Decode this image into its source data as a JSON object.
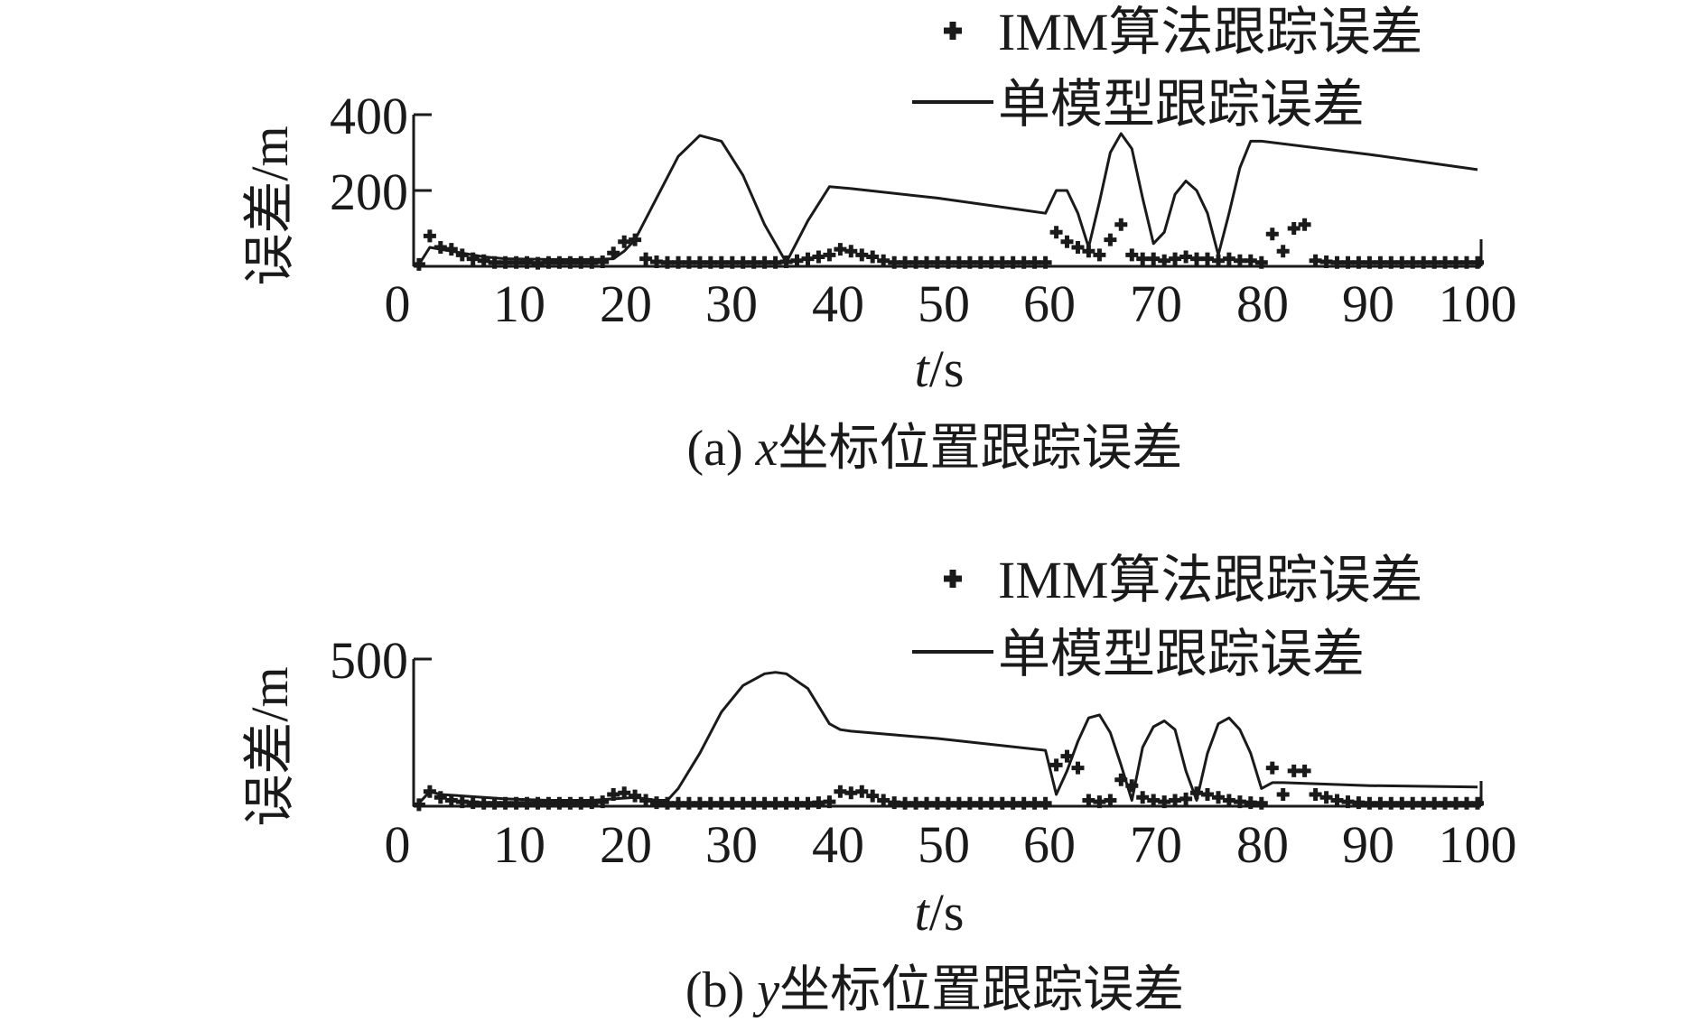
{
  "figure": {
    "panels": [
      {
        "legend": {
          "markers_label": "IMM算法跟踪误差",
          "line_label": "单模型跟踪误差"
        },
        "ylabel": "误差/m",
        "xlabel_var": "t",
        "xlabel_unit": "/s",
        "caption_prefix": "(a) ",
        "caption_var": "x",
        "caption_rest": "坐标位置跟踪误差",
        "xticks": [
          "0",
          "10",
          "20",
          "30",
          "40",
          "50",
          "60",
          "70",
          "80",
          "90",
          "100"
        ],
        "yticks": [
          "200",
          "400"
        ]
      },
      {
        "legend": {
          "markers_label": "IMM算法跟踪误差",
          "line_label": "单模型跟踪误差"
        },
        "ylabel": "误差/m",
        "xlabel_var": "t",
        "xlabel_unit": "/s",
        "caption_prefix": "(b) ",
        "caption_var": "y",
        "caption_rest": "坐标位置跟踪误差",
        "xticks": [
          "0",
          "10",
          "20",
          "30",
          "40",
          "50",
          "60",
          "70",
          "80",
          "90",
          "100"
        ],
        "yticks": [
          "500"
        ]
      }
    ]
  },
  "chart_data": [
    {
      "type": "line",
      "title": "(a) x坐标位置跟踪误差",
      "xlabel": "t/s",
      "ylabel": "误差/m",
      "xlim": [
        0,
        100
      ],
      "ylim": [
        0,
        400
      ],
      "grid": false,
      "legend_position": "top-right",
      "series": [
        {
          "name": "单模型跟踪误差",
          "style": "line",
          "color": "#1a1a1a",
          "x": [
            2,
            3,
            4,
            5,
            6,
            8,
            10,
            14,
            18,
            20,
            21,
            22,
            24,
            26,
            28,
            30,
            32,
            34,
            36,
            38,
            40,
            42,
            50,
            60,
            61,
            62,
            63,
            64,
            65,
            66,
            67,
            68,
            69,
            70,
            71,
            72,
            73,
            74,
            75,
            76,
            77,
            78,
            79,
            80,
            90,
            100
          ],
          "y": [
            5,
            50,
            45,
            40,
            35,
            25,
            20,
            18,
            18,
            20,
            40,
            70,
            180,
            290,
            345,
            330,
            240,
            110,
            10,
            120,
            210,
            205,
            180,
            140,
            200,
            200,
            140,
            50,
            170,
            300,
            350,
            310,
            180,
            60,
            90,
            190,
            225,
            200,
            140,
            30,
            140,
            260,
            330,
            330,
            295,
            255
          ]
        },
        {
          "name": "IMM算法跟踪误差",
          "style": "markers",
          "color": "#1a1a1a",
          "x": [
            2,
            3,
            4,
            5,
            6,
            7,
            8,
            9,
            10,
            11,
            12,
            13,
            14,
            15,
            16,
            17,
            18,
            19,
            20,
            21,
            22,
            23,
            24,
            25,
            26,
            27,
            28,
            29,
            30,
            31,
            32,
            33,
            34,
            35,
            36,
            37,
            38,
            39,
            40,
            41,
            42,
            43,
            44,
            45,
            46,
            47,
            48,
            49,
            50,
            51,
            52,
            53,
            54,
            55,
            56,
            57,
            58,
            59,
            60,
            61,
            62,
            63,
            64,
            65,
            66,
            67,
            68,
            69,
            70,
            71,
            72,
            73,
            74,
            75,
            76,
            77,
            78,
            79,
            80,
            81,
            82,
            83,
            84,
            85,
            86,
            87,
            88,
            89,
            90,
            91,
            92,
            93,
            94,
            95,
            96,
            97,
            98,
            99,
            100
          ],
          "y": [
            5,
            80,
            50,
            45,
            30,
            20,
            15,
            10,
            10,
            10,
            10,
            8,
            10,
            10,
            10,
            10,
            10,
            12,
            35,
            65,
            70,
            20,
            12,
            10,
            10,
            10,
            10,
            10,
            10,
            10,
            10,
            10,
            10,
            10,
            12,
            15,
            20,
            25,
            30,
            45,
            40,
            30,
            25,
            15,
            10,
            10,
            10,
            10,
            10,
            10,
            10,
            10,
            10,
            10,
            10,
            10,
            10,
            10,
            10,
            90,
            65,
            50,
            40,
            30,
            70,
            110,
            30,
            20,
            20,
            15,
            20,
            25,
            20,
            20,
            15,
            20,
            15,
            15,
            10,
            85,
            40,
            100,
            110,
            15,
            12,
            10,
            10,
            10,
            10,
            10,
            10,
            10,
            10,
            10,
            10,
            10,
            10,
            10,
            10
          ]
        }
      ]
    },
    {
      "type": "line",
      "title": "(b) y坐标位置跟踪误差",
      "xlabel": "t/s",
      "ylabel": "误差/m",
      "xlim": [
        0,
        100
      ],
      "ylim": [
        0,
        500
      ],
      "grid": false,
      "legend_position": "top-right",
      "series": [
        {
          "name": "单模型跟踪误差",
          "style": "line",
          "color": "#1a1a1a",
          "x": [
            2,
            3,
            4,
            6,
            8,
            10,
            14,
            18,
            20,
            22,
            24,
            25,
            26,
            28,
            30,
            32,
            34,
            35,
            36,
            38,
            40,
            41,
            42,
            50,
            60,
            61,
            62,
            63,
            64,
            65,
            66,
            67,
            68,
            69,
            70,
            71,
            72,
            73,
            74,
            75,
            76,
            77,
            78,
            79,
            80,
            81,
            82,
            90,
            100
          ],
          "y": [
            10,
            50,
            40,
            35,
            30,
            25,
            20,
            20,
            25,
            30,
            20,
            20,
            60,
            180,
            320,
            410,
            450,
            455,
            450,
            400,
            280,
            260,
            255,
            230,
            190,
            40,
            120,
            220,
            300,
            310,
            250,
            140,
            20,
            200,
            270,
            290,
            260,
            120,
            20,
            180,
            280,
            300,
            260,
            180,
            60,
            80,
            80,
            70,
            65
          ]
        },
        {
          "name": "IMM算法跟踪误差",
          "style": "markers",
          "color": "#1a1a1a",
          "x": [
            2,
            3,
            4,
            5,
            6,
            7,
            8,
            9,
            10,
            11,
            12,
            13,
            14,
            15,
            16,
            17,
            18,
            19,
            20,
            21,
            22,
            23,
            24,
            25,
            26,
            27,
            28,
            29,
            30,
            31,
            32,
            33,
            34,
            35,
            36,
            37,
            38,
            39,
            40,
            41,
            42,
            43,
            44,
            45,
            46,
            47,
            48,
            49,
            50,
            51,
            52,
            53,
            54,
            55,
            56,
            57,
            58,
            59,
            60,
            61,
            62,
            63,
            64,
            65,
            66,
            67,
            68,
            69,
            70,
            71,
            72,
            73,
            74,
            75,
            76,
            77,
            78,
            79,
            80,
            81,
            82,
            83,
            84,
            85,
            86,
            87,
            88,
            89,
            90,
            91,
            92,
            93,
            94,
            95,
            96,
            97,
            98,
            99,
            100
          ],
          "y": [
            5,
            50,
            30,
            20,
            15,
            12,
            10,
            10,
            10,
            10,
            10,
            10,
            10,
            10,
            10,
            10,
            12,
            15,
            40,
            45,
            35,
            20,
            12,
            10,
            10,
            10,
            10,
            10,
            10,
            10,
            10,
            10,
            10,
            10,
            10,
            10,
            10,
            12,
            15,
            50,
            45,
            50,
            35,
            20,
            12,
            10,
            10,
            10,
            10,
            10,
            10,
            10,
            10,
            10,
            10,
            10,
            10,
            10,
            10,
            140,
            170,
            130,
            20,
            15,
            20,
            90,
            70,
            30,
            20,
            15,
            20,
            25,
            45,
            40,
            30,
            20,
            15,
            12,
            10,
            130,
            40,
            120,
            120,
            40,
            30,
            20,
            15,
            12,
            10,
            10,
            10,
            10,
            10,
            10,
            10,
            10,
            10,
            10,
            10
          ]
        }
      ]
    }
  ]
}
